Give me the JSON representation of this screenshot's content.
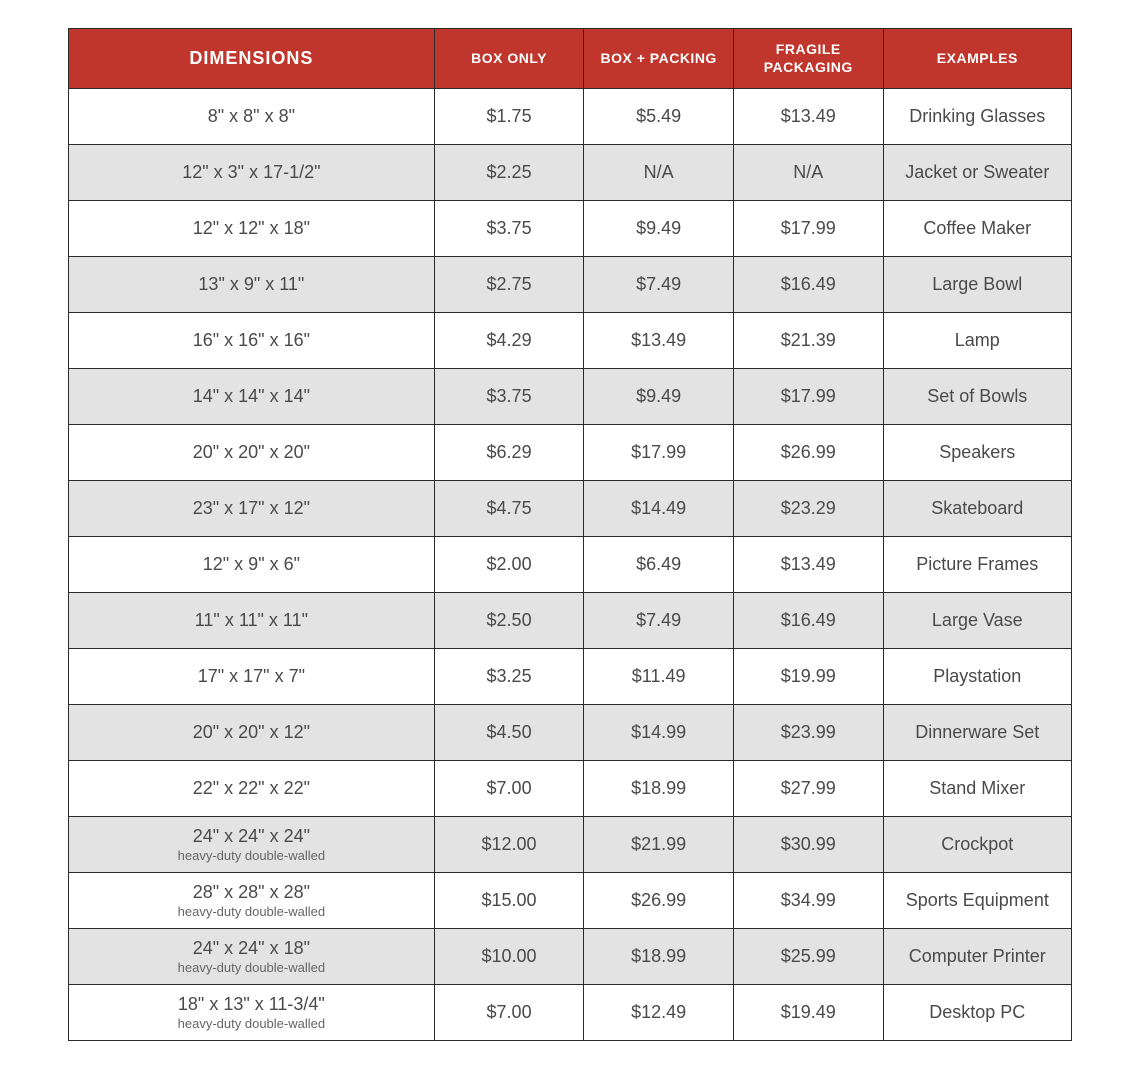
{
  "colors": {
    "header_bg": "#c0362c",
    "row_alt_bg": "#e3e3e3"
  },
  "table": {
    "columns": [
      {
        "key": "dimensions",
        "label": "DIMENSIONS"
      },
      {
        "key": "box_only",
        "label": "BOX ONLY"
      },
      {
        "key": "box_packing",
        "label": "BOX + PACKING"
      },
      {
        "key": "fragile",
        "label": "FRAGILE PACKAGING"
      },
      {
        "key": "examples",
        "label": "EXAMPLES"
      }
    ],
    "rows": [
      {
        "dimensions": "8\" x 8\" x 8\"",
        "sub": "",
        "box_only": "$1.75",
        "box_packing": "$5.49",
        "fragile": "$13.49",
        "examples": "Drinking Glasses"
      },
      {
        "dimensions": "12\" x 3\" x 17-1/2\"",
        "sub": "",
        "box_only": "$2.25",
        "box_packing": "N/A",
        "fragile": "N/A",
        "examples": "Jacket or Sweater"
      },
      {
        "dimensions": "12\" x 12\" x 18\"",
        "sub": "",
        "box_only": "$3.75",
        "box_packing": "$9.49",
        "fragile": "$17.99",
        "examples": "Coffee Maker"
      },
      {
        "dimensions": "13\" x 9\" x 11\"",
        "sub": "",
        "box_only": "$2.75",
        "box_packing": "$7.49",
        "fragile": "$16.49",
        "examples": "Large Bowl"
      },
      {
        "dimensions": "16\" x 16\" x 16\"",
        "sub": "",
        "box_only": "$4.29",
        "box_packing": "$13.49",
        "fragile": "$21.39",
        "examples": "Lamp"
      },
      {
        "dimensions": "14\" x 14\" x 14\"",
        "sub": "",
        "box_only": "$3.75",
        "box_packing": "$9.49",
        "fragile": "$17.99",
        "examples": "Set of Bowls"
      },
      {
        "dimensions": "20\" x 20\" x 20\"",
        "sub": "",
        "box_only": "$6.29",
        "box_packing": "$17.99",
        "fragile": "$26.99",
        "examples": "Speakers"
      },
      {
        "dimensions": "23\" x 17\" x 12\"",
        "sub": "",
        "box_only": "$4.75",
        "box_packing": "$14.49",
        "fragile": "$23.29",
        "examples": "Skateboard"
      },
      {
        "dimensions": "12\" x 9\" x 6\"",
        "sub": "",
        "box_only": "$2.00",
        "box_packing": "$6.49",
        "fragile": "$13.49",
        "examples": "Picture Frames"
      },
      {
        "dimensions": "11\" x 11\" x 11\"",
        "sub": "",
        "box_only": "$2.50",
        "box_packing": "$7.49",
        "fragile": "$16.49",
        "examples": "Large Vase"
      },
      {
        "dimensions": "17\" x 17\" x 7\"",
        "sub": "",
        "box_only": "$3.25",
        "box_packing": "$11.49",
        "fragile": "$19.99",
        "examples": "Playstation"
      },
      {
        "dimensions": "20\" x 20\" x 12\"",
        "sub": "",
        "box_only": "$4.50",
        "box_packing": "$14.99",
        "fragile": "$23.99",
        "examples": "Dinnerware Set"
      },
      {
        "dimensions": "22\" x 22\" x 22\"",
        "sub": "",
        "box_only": "$7.00",
        "box_packing": "$18.99",
        "fragile": "$27.99",
        "examples": "Stand Mixer"
      },
      {
        "dimensions": "24\" x 24\" x 24\"",
        "sub": "heavy-duty double-walled",
        "box_only": "$12.00",
        "box_packing": "$21.99",
        "fragile": "$30.99",
        "examples": "Crockpot"
      },
      {
        "dimensions": "28\" x 28\" x 28\"",
        "sub": "heavy-duty double-walled",
        "box_only": "$15.00",
        "box_packing": "$26.99",
        "fragile": "$34.99",
        "examples": "Sports Equipment"
      },
      {
        "dimensions": "24\" x 24\" x 18\"",
        "sub": "heavy-duty double-walled",
        "box_only": "$10.00",
        "box_packing": "$18.99",
        "fragile": "$25.99",
        "examples": "Computer Printer"
      },
      {
        "dimensions": "18\" x 13\" x 11-3/4\"",
        "sub": "heavy-duty double-walled",
        "box_only": "$7.00",
        "box_packing": "$12.49",
        "fragile": "$19.49",
        "examples": "Desktop PC"
      }
    ]
  }
}
